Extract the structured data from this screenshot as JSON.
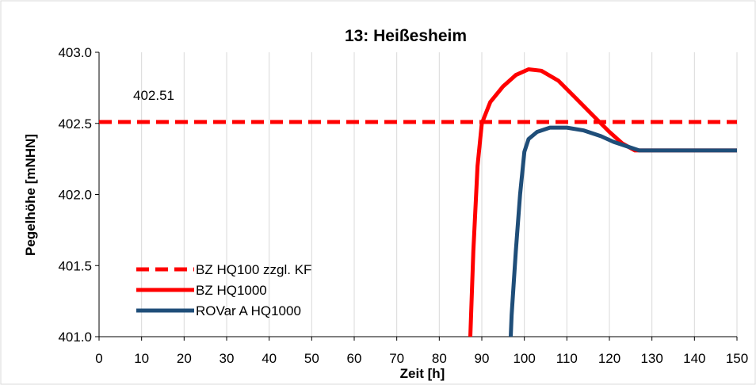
{
  "chart_data": {
    "type": "line",
    "title": "13: Heißesheim",
    "xlabel": "Zeit [h]",
    "ylabel": "Pegelhöhe [mNHN]",
    "xlim": [
      0,
      150
    ],
    "ylim": [
      401.0,
      403.0
    ],
    "x_ticks": [
      0,
      10,
      20,
      30,
      40,
      50,
      60,
      70,
      80,
      90,
      100,
      110,
      120,
      130,
      140,
      150
    ],
    "y_ticks": [
      "401.0",
      "401.5",
      "402.0",
      "402.5",
      "403.0"
    ],
    "grid": "vertical",
    "legend_position": "bottom-left",
    "annotation": "402.51",
    "series": [
      {
        "name": "BZ HQ100 zzgl. KF",
        "color": "#ff0000",
        "style": "dashed",
        "points": [
          [
            0,
            402.51
          ],
          [
            150,
            402.51
          ]
        ]
      },
      {
        "name": "BZ HQ1000",
        "color": "#ff0000",
        "style": "solid",
        "points": [
          [
            87.3,
            401.0
          ],
          [
            88.0,
            401.6
          ],
          [
            89.0,
            402.2
          ],
          [
            90.0,
            402.5
          ],
          [
            92,
            402.65
          ],
          [
            95,
            402.76
          ],
          [
            98,
            402.84
          ],
          [
            101,
            402.88
          ],
          [
            104,
            402.87
          ],
          [
            108,
            402.8
          ],
          [
            112,
            402.68
          ],
          [
            116,
            402.56
          ],
          [
            120,
            402.44
          ],
          [
            123,
            402.36
          ],
          [
            126,
            402.31
          ],
          [
            130,
            402.31
          ],
          [
            150,
            402.31
          ]
        ]
      },
      {
        "name": "ROVar A HQ1000",
        "color": "#1f4e79",
        "style": "solid",
        "points": [
          [
            96.8,
            401.0
          ],
          [
            97.0,
            401.15
          ],
          [
            98.0,
            401.6
          ],
          [
            99.0,
            402.0
          ],
          [
            100.0,
            402.3
          ],
          [
            101,
            402.39
          ],
          [
            103,
            402.44
          ],
          [
            106,
            402.47
          ],
          [
            110,
            402.47
          ],
          [
            114,
            402.45
          ],
          [
            118,
            402.41
          ],
          [
            121,
            402.37
          ],
          [
            124,
            402.34
          ],
          [
            127,
            402.31
          ],
          [
            130,
            402.31
          ],
          [
            150,
            402.31
          ]
        ]
      }
    ]
  }
}
